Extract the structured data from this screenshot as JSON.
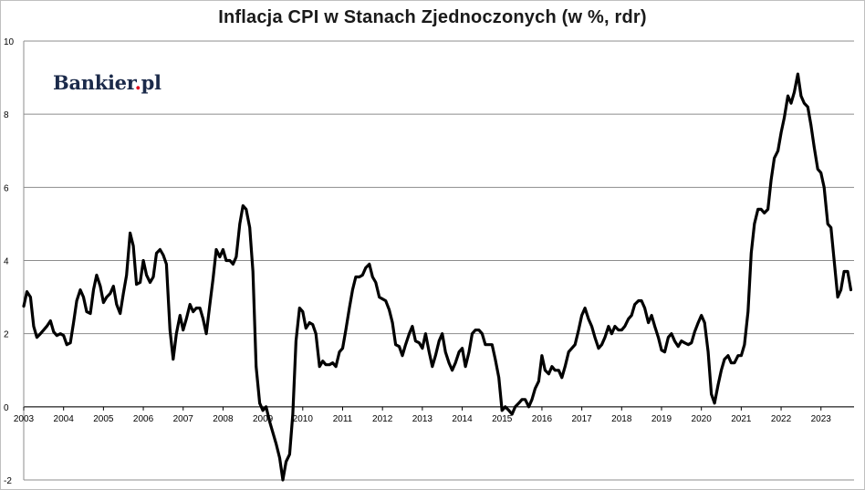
{
  "chart_data": {
    "type": "line",
    "title": "Inflacja CPI w Stanach Zjednoczonych (w %, rdr)",
    "xlabel": "",
    "ylabel": "",
    "ylim": [
      -2,
      10
    ],
    "yticks": [
      "-2",
      "0",
      "2",
      "4",
      "6",
      "8",
      "10"
    ],
    "xlim": [
      2003,
      2023.83
    ],
    "xticks": [
      "2003",
      "2004",
      "2005",
      "2006",
      "2007",
      "2008",
      "2009",
      "2010",
      "2011",
      "2012",
      "2013",
      "2014",
      "2015",
      "2016",
      "2017",
      "2018",
      "2019",
      "2020",
      "2021",
      "2022",
      "2023"
    ],
    "grid": true,
    "legend": "none",
    "line_color": "#000000",
    "series": [
      {
        "values": [
          [
            2003.0,
            2.75
          ],
          [
            2003.08,
            3.15
          ],
          [
            2003.17,
            3.0
          ],
          [
            2003.25,
            2.2
          ],
          [
            2003.33,
            1.9
          ],
          [
            2003.42,
            2.0
          ],
          [
            2003.5,
            2.1
          ],
          [
            2003.58,
            2.2
          ],
          [
            2003.67,
            2.35
          ],
          [
            2003.75,
            2.05
          ],
          [
            2003.83,
            1.95
          ],
          [
            2003.92,
            2.0
          ],
          [
            2004.0,
            1.95
          ],
          [
            2004.08,
            1.7
          ],
          [
            2004.17,
            1.75
          ],
          [
            2004.25,
            2.3
          ],
          [
            2004.33,
            2.9
          ],
          [
            2004.42,
            3.2
          ],
          [
            2004.5,
            3.0
          ],
          [
            2004.58,
            2.6
          ],
          [
            2004.67,
            2.55
          ],
          [
            2004.75,
            3.2
          ],
          [
            2004.83,
            3.6
          ],
          [
            2004.92,
            3.3
          ],
          [
            2005.0,
            2.85
          ],
          [
            2005.08,
            3.0
          ],
          [
            2005.17,
            3.1
          ],
          [
            2005.25,
            3.3
          ],
          [
            2005.33,
            2.8
          ],
          [
            2005.42,
            2.55
          ],
          [
            2005.5,
            3.1
          ],
          [
            2005.58,
            3.6
          ],
          [
            2005.67,
            4.75
          ],
          [
            2005.75,
            4.4
          ],
          [
            2005.83,
            3.35
          ],
          [
            2005.92,
            3.4
          ],
          [
            2006.0,
            4.0
          ],
          [
            2006.08,
            3.6
          ],
          [
            2006.17,
            3.4
          ],
          [
            2006.25,
            3.55
          ],
          [
            2006.33,
            4.2
          ],
          [
            2006.42,
            4.3
          ],
          [
            2006.5,
            4.15
          ],
          [
            2006.58,
            3.9
          ],
          [
            2006.67,
            2.1
          ],
          [
            2006.75,
            1.3
          ],
          [
            2006.83,
            2.0
          ],
          [
            2006.92,
            2.5
          ],
          [
            2007.0,
            2.1
          ],
          [
            2007.08,
            2.4
          ],
          [
            2007.17,
            2.8
          ],
          [
            2007.25,
            2.6
          ],
          [
            2007.33,
            2.7
          ],
          [
            2007.42,
            2.7
          ],
          [
            2007.5,
            2.4
          ],
          [
            2007.58,
            2.0
          ],
          [
            2007.67,
            2.8
          ],
          [
            2007.75,
            3.5
          ],
          [
            2007.83,
            4.3
          ],
          [
            2007.92,
            4.1
          ],
          [
            2008.0,
            4.3
          ],
          [
            2008.08,
            4.0
          ],
          [
            2008.17,
            4.0
          ],
          [
            2008.25,
            3.9
          ],
          [
            2008.33,
            4.1
          ],
          [
            2008.42,
            5.0
          ],
          [
            2008.5,
            5.5
          ],
          [
            2008.58,
            5.4
          ],
          [
            2008.67,
            4.9
          ],
          [
            2008.75,
            3.7
          ],
          [
            2008.83,
            1.1
          ],
          [
            2008.92,
            0.1
          ],
          [
            2009.0,
            -0.1
          ],
          [
            2009.08,
            0.0
          ],
          [
            2009.17,
            -0.4
          ],
          [
            2009.25,
            -0.7
          ],
          [
            2009.33,
            -1.0
          ],
          [
            2009.42,
            -1.4
          ],
          [
            2009.5,
            -2.0
          ],
          [
            2009.58,
            -1.5
          ],
          [
            2009.67,
            -1.3
          ],
          [
            2009.75,
            -0.2
          ],
          [
            2009.83,
            1.8
          ],
          [
            2009.92,
            2.7
          ],
          [
            2010.0,
            2.6
          ],
          [
            2010.08,
            2.15
          ],
          [
            2010.17,
            2.3
          ],
          [
            2010.25,
            2.25
          ],
          [
            2010.33,
            2.0
          ],
          [
            2010.42,
            1.1
          ],
          [
            2010.5,
            1.25
          ],
          [
            2010.58,
            1.15
          ],
          [
            2010.67,
            1.15
          ],
          [
            2010.75,
            1.2
          ],
          [
            2010.83,
            1.1
          ],
          [
            2010.92,
            1.5
          ],
          [
            2011.0,
            1.6
          ],
          [
            2011.08,
            2.1
          ],
          [
            2011.17,
            2.7
          ],
          [
            2011.25,
            3.2
          ],
          [
            2011.33,
            3.55
          ],
          [
            2011.42,
            3.55
          ],
          [
            2011.5,
            3.6
          ],
          [
            2011.58,
            3.8
          ],
          [
            2011.67,
            3.9
          ],
          [
            2011.75,
            3.55
          ],
          [
            2011.83,
            3.4
          ],
          [
            2011.92,
            3.0
          ],
          [
            2012.0,
            2.95
          ],
          [
            2012.08,
            2.9
          ],
          [
            2012.17,
            2.65
          ],
          [
            2012.25,
            2.3
          ],
          [
            2012.33,
            1.7
          ],
          [
            2012.42,
            1.65
          ],
          [
            2012.5,
            1.4
          ],
          [
            2012.58,
            1.7
          ],
          [
            2012.67,
            2.0
          ],
          [
            2012.75,
            2.2
          ],
          [
            2012.83,
            1.8
          ],
          [
            2012.92,
            1.75
          ],
          [
            2013.0,
            1.6
          ],
          [
            2013.08,
            2.0
          ],
          [
            2013.17,
            1.5
          ],
          [
            2013.25,
            1.1
          ],
          [
            2013.33,
            1.4
          ],
          [
            2013.42,
            1.8
          ],
          [
            2013.5,
            2.0
          ],
          [
            2013.58,
            1.5
          ],
          [
            2013.67,
            1.2
          ],
          [
            2013.75,
            1.0
          ],
          [
            2013.83,
            1.2
          ],
          [
            2013.92,
            1.5
          ],
          [
            2014.0,
            1.6
          ],
          [
            2014.08,
            1.1
          ],
          [
            2014.17,
            1.5
          ],
          [
            2014.25,
            2.0
          ],
          [
            2014.33,
            2.1
          ],
          [
            2014.42,
            2.1
          ],
          [
            2014.5,
            2.0
          ],
          [
            2014.58,
            1.7
          ],
          [
            2014.67,
            1.7
          ],
          [
            2014.75,
            1.7
          ],
          [
            2014.83,
            1.3
          ],
          [
            2014.92,
            0.8
          ],
          [
            2015.0,
            -0.1
          ],
          [
            2015.08,
            0.0
          ],
          [
            2015.17,
            -0.1
          ],
          [
            2015.25,
            -0.2
          ],
          [
            2015.33,
            0.0
          ],
          [
            2015.42,
            0.1
          ],
          [
            2015.5,
            0.2
          ],
          [
            2015.58,
            0.2
          ],
          [
            2015.67,
            0.0
          ],
          [
            2015.75,
            0.2
          ],
          [
            2015.83,
            0.5
          ],
          [
            2015.92,
            0.7
          ],
          [
            2016.0,
            1.4
          ],
          [
            2016.08,
            1.0
          ],
          [
            2016.17,
            0.9
          ],
          [
            2016.25,
            1.1
          ],
          [
            2016.33,
            1.0
          ],
          [
            2016.42,
            1.0
          ],
          [
            2016.5,
            0.8
          ],
          [
            2016.58,
            1.1
          ],
          [
            2016.67,
            1.5
          ],
          [
            2016.75,
            1.6
          ],
          [
            2016.83,
            1.7
          ],
          [
            2016.92,
            2.1
          ],
          [
            2017.0,
            2.5
          ],
          [
            2017.08,
            2.7
          ],
          [
            2017.17,
            2.4
          ],
          [
            2017.25,
            2.2
          ],
          [
            2017.33,
            1.9
          ],
          [
            2017.42,
            1.6
          ],
          [
            2017.5,
            1.7
          ],
          [
            2017.58,
            1.9
          ],
          [
            2017.67,
            2.2
          ],
          [
            2017.75,
            2.0
          ],
          [
            2017.83,
            2.2
          ],
          [
            2017.92,
            2.1
          ],
          [
            2018.0,
            2.1
          ],
          [
            2018.08,
            2.2
          ],
          [
            2018.17,
            2.4
          ],
          [
            2018.25,
            2.5
          ],
          [
            2018.33,
            2.8
          ],
          [
            2018.42,
            2.9
          ],
          [
            2018.5,
            2.9
          ],
          [
            2018.58,
            2.7
          ],
          [
            2018.67,
            2.3
          ],
          [
            2018.75,
            2.5
          ],
          [
            2018.83,
            2.2
          ],
          [
            2018.92,
            1.9
          ],
          [
            2019.0,
            1.55
          ],
          [
            2019.08,
            1.5
          ],
          [
            2019.17,
            1.9
          ],
          [
            2019.25,
            2.0
          ],
          [
            2019.33,
            1.8
          ],
          [
            2019.42,
            1.65
          ],
          [
            2019.5,
            1.8
          ],
          [
            2019.58,
            1.75
          ],
          [
            2019.67,
            1.7
          ],
          [
            2019.75,
            1.75
          ],
          [
            2019.83,
            2.05
          ],
          [
            2019.92,
            2.3
          ],
          [
            2020.0,
            2.5
          ],
          [
            2020.08,
            2.3
          ],
          [
            2020.17,
            1.5
          ],
          [
            2020.25,
            0.35
          ],
          [
            2020.33,
            0.1
          ],
          [
            2020.42,
            0.6
          ],
          [
            2020.5,
            1.0
          ],
          [
            2020.58,
            1.3
          ],
          [
            2020.67,
            1.4
          ],
          [
            2020.75,
            1.2
          ],
          [
            2020.83,
            1.2
          ],
          [
            2020.92,
            1.4
          ],
          [
            2021.0,
            1.4
          ],
          [
            2021.08,
            1.7
          ],
          [
            2021.17,
            2.6
          ],
          [
            2021.25,
            4.2
          ],
          [
            2021.33,
            5.0
          ],
          [
            2021.42,
            5.4
          ],
          [
            2021.5,
            5.4
          ],
          [
            2021.58,
            5.3
          ],
          [
            2021.67,
            5.4
          ],
          [
            2021.75,
            6.2
          ],
          [
            2021.83,
            6.8
          ],
          [
            2021.92,
            7.0
          ],
          [
            2022.0,
            7.5
          ],
          [
            2022.08,
            7.9
          ],
          [
            2022.17,
            8.5
          ],
          [
            2022.25,
            8.3
          ],
          [
            2022.33,
            8.6
          ],
          [
            2022.42,
            9.1
          ],
          [
            2022.5,
            8.5
          ],
          [
            2022.58,
            8.3
          ],
          [
            2022.67,
            8.2
          ],
          [
            2022.75,
            7.7
          ],
          [
            2022.83,
            7.1
          ],
          [
            2022.92,
            6.5
          ],
          [
            2023.0,
            6.4
          ],
          [
            2023.08,
            6.0
          ],
          [
            2023.17,
            5.0
          ],
          [
            2023.25,
            4.9
          ],
          [
            2023.33,
            4.0
          ],
          [
            2023.42,
            3.0
          ],
          [
            2023.5,
            3.2
          ],
          [
            2023.58,
            3.7
          ],
          [
            2023.67,
            3.7
          ],
          [
            2023.75,
            3.2
          ]
        ]
      }
    ]
  },
  "branding": {
    "logo_main": "Bankier",
    "logo_dot": ".",
    "logo_suffix": "pl"
  }
}
